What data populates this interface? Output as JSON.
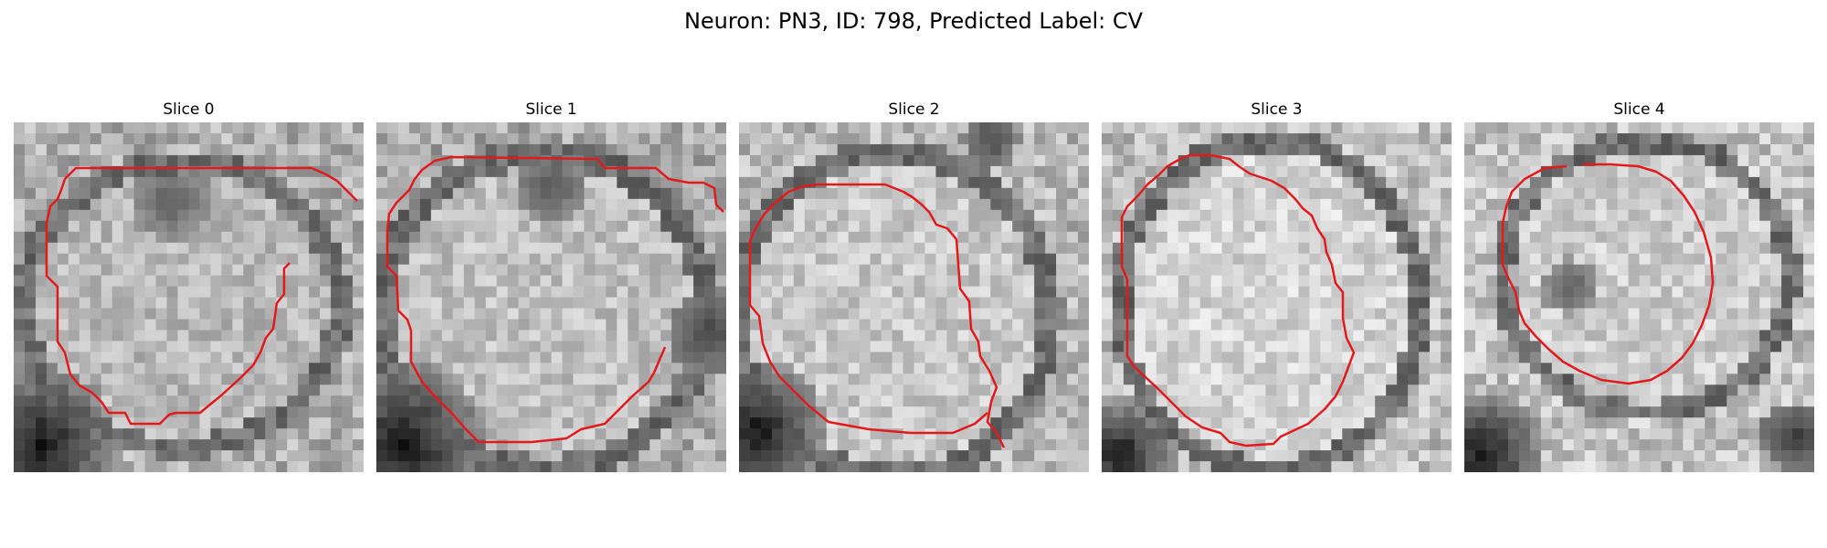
{
  "figure": {
    "title": "Neuron: PN3, ID: 798, Predicted Label: CV"
  },
  "panels": [
    {
      "title": "Slice 0"
    },
    {
      "title": "Slice 1"
    },
    {
      "title": "Slice 2"
    },
    {
      "title": "Slice 3"
    },
    {
      "title": "Slice 4"
    }
  ],
  "colors": {
    "contour": "#e31a1c",
    "background": "#ffffff"
  }
}
